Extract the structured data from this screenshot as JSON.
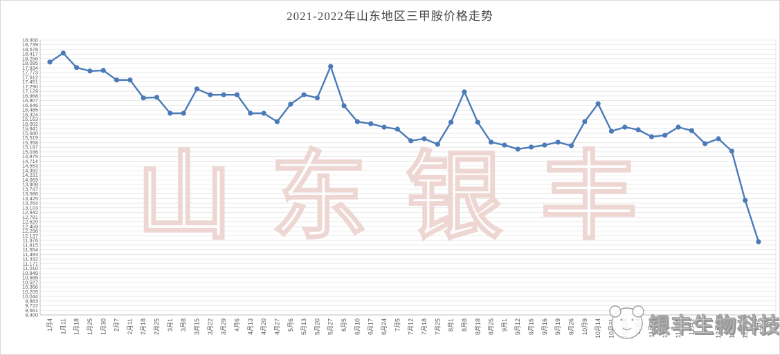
{
  "chart_data": {
    "type": "line",
    "title": "2021-2022年山东地区三甲胺价格走势",
    "x": [
      "1月4",
      "1月11",
      "1月18",
      "1月25",
      "1月30",
      "2月7",
      "2月11",
      "2月18",
      "2月25",
      "3月1",
      "3月8",
      "3月15",
      "3月22",
      "3月29",
      "4月6",
      "4月13",
      "4月20",
      "4月27",
      "5月6",
      "5月13",
      "5月20",
      "5月27",
      "6月5",
      "6月10",
      "6月17",
      "6月24",
      "7月5",
      "7月12",
      "7月18",
      "7月25",
      "8月1",
      "8月8",
      "8月18",
      "8月25",
      "9月1",
      "9月12",
      "9月15",
      "9月16",
      "9月19",
      "9月26",
      "10月9",
      "10月14",
      "10月21",
      "10月28",
      "11月4",
      "11月11",
      "11月18",
      "11月25",
      "12月2",
      "12月9",
      "12月16",
      "12月23",
      "12月30",
      "1月6"
    ],
    "values": [
      18140,
      18450,
      17950,
      17830,
      17850,
      17520,
      17520,
      16900,
      16920,
      16370,
      16370,
      17210,
      17010,
      17010,
      17010,
      16370,
      16370,
      16080,
      16680,
      17010,
      16900,
      17990,
      16630,
      16080,
      16010,
      15890,
      15820,
      15420,
      15490,
      15300,
      16060,
      17110,
      16060,
      15370,
      15270,
      15130,
      15200,
      15270,
      15370,
      15250,
      16080,
      16700,
      15750,
      15890,
      15800,
      15560,
      15610,
      15890,
      15770,
      15320,
      15490,
      15060,
      13360,
      11930
    ],
    "xlabel": "",
    "ylabel": "",
    "y_axis": {
      "min": 9400,
      "max": 18900,
      "divisions": 59,
      "label_format": "comma"
    },
    "x_axis": {
      "label_rotation": -90
    },
    "grid": "dense-horizontal",
    "legend": "none",
    "marker": "circle"
  },
  "watermark": {
    "text": "山东银丰"
  },
  "logo": {
    "text": "银丰生物科技",
    "icon": "sheep-badge-icon"
  },
  "colors": {
    "line": "#4a7ab8",
    "marker": "#4a7ab8",
    "grid": "#dcdcdc",
    "axis": "#bfbfbf",
    "tick_text": "#595959",
    "title_text": "#4a4a4a",
    "watermark_outline": "#eed6d3",
    "watermark_fill": "#ffffff",
    "logo_outline": "#9f9f9f",
    "border": "#d9d9d9",
    "background": "#ffffff"
  }
}
